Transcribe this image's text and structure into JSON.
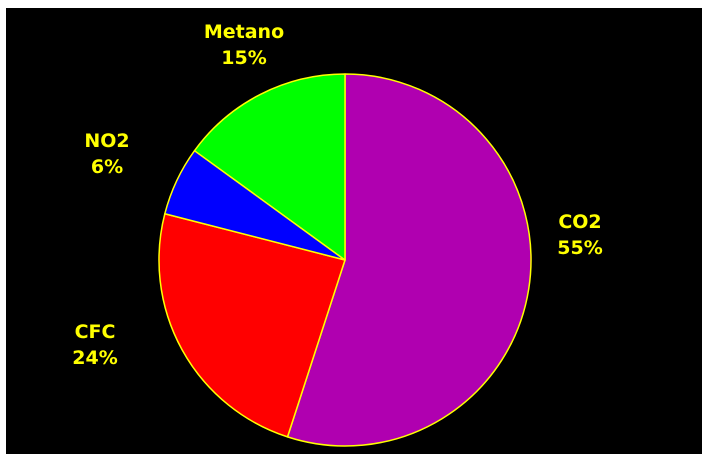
{
  "chart_data": {
    "type": "pie",
    "title": "",
    "slices": [
      {
        "label": "CO2",
        "value": 55,
        "percent_text": "55%",
        "color": "#b000b0"
      },
      {
        "label": "CFC",
        "value": 24,
        "percent_text": "24%",
        "color": "#ff0000"
      },
      {
        "label": "NO2",
        "value": 6,
        "percent_text": "6%",
        "color": "#0000ff"
      },
      {
        "label": "Metano",
        "value": 15,
        "percent_text": "15%",
        "color": "#00ff00"
      }
    ],
    "start_angle_degrees": 0,
    "direction": "clockwise",
    "slice_border_color": "#ffff00",
    "background_color": "#000000",
    "label_color": "#ffff00"
  }
}
